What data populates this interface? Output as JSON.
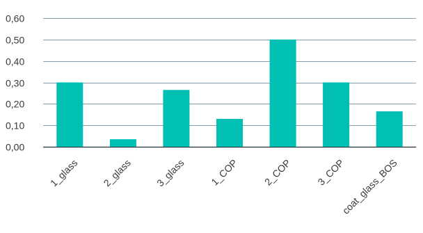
{
  "chart_data": {
    "type": "bar",
    "title": "",
    "xlabel": "",
    "ylabel": "",
    "categories": [
      "1_glass",
      "2_glass",
      "3_glass",
      "1_COP",
      "2_COP",
      "3_COP",
      "coat_glass_BOS"
    ],
    "values": [
      0.3,
      0.035,
      0.265,
      0.13,
      0.5,
      0.3,
      0.165
    ],
    "ylim": [
      0,
      0.6
    ],
    "yticks": [
      0,
      0.1,
      0.2,
      0.3,
      0.4,
      0.5,
      0.6
    ],
    "ytick_labels": [
      "0,00",
      "0,10",
      "0,20",
      "0,30",
      "0,40",
      "0,50",
      "0,60"
    ],
    "grid": true,
    "legend": "none",
    "colors": {
      "bar": "#00BFB3",
      "grid": "#5f7f8f",
      "text": "#3a3a3a"
    }
  }
}
